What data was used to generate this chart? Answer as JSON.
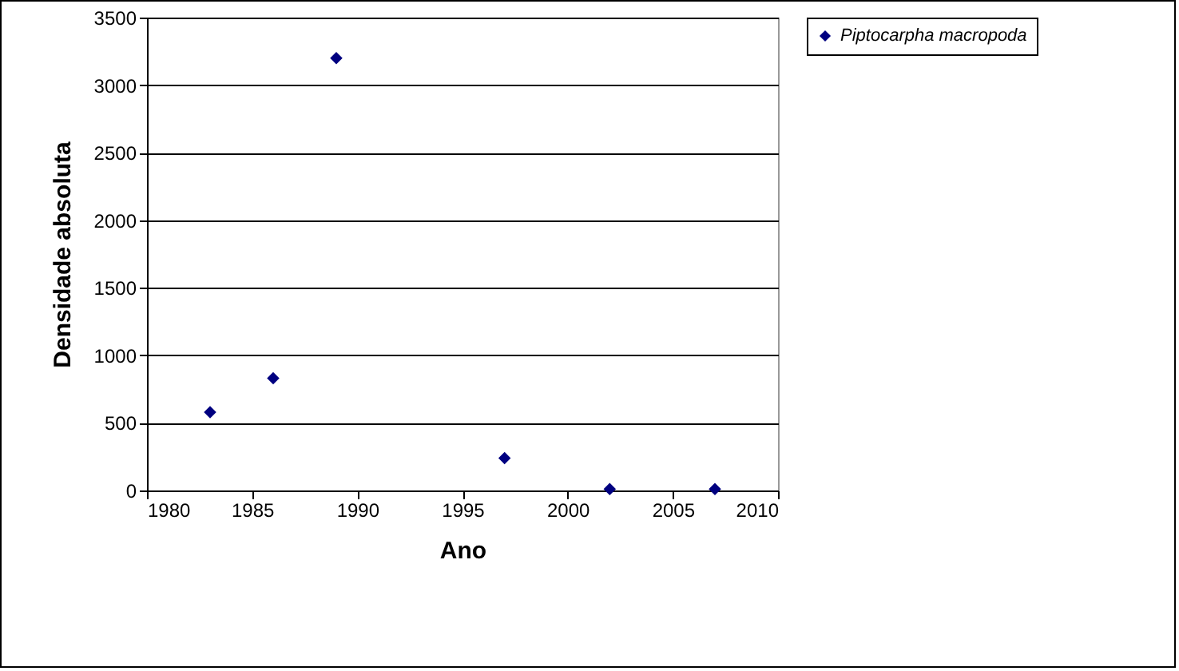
{
  "chart_data": {
    "type": "scatter",
    "xlabel": "Ano",
    "ylabel": "Densidade absoluta",
    "x": [
      1983,
      1986,
      1989,
      1997,
      2002,
      2007
    ],
    "series": [
      {
        "name": "Piptocarpha macropoda",
        "color": "#000080",
        "values": [
          580,
          830,
          3200,
          240,
          10,
          10
        ]
      }
    ],
    "xlim": [
      1980,
      2010
    ],
    "xticks": [
      1980,
      1985,
      1990,
      1995,
      2000,
      2005,
      2010
    ],
    "ylim": [
      0,
      3500
    ],
    "yticks": [
      0,
      500,
      1000,
      1500,
      2000,
      2500,
      3000,
      3500
    ],
    "grid": "y",
    "legend": "right",
    "marker": "diamond"
  }
}
